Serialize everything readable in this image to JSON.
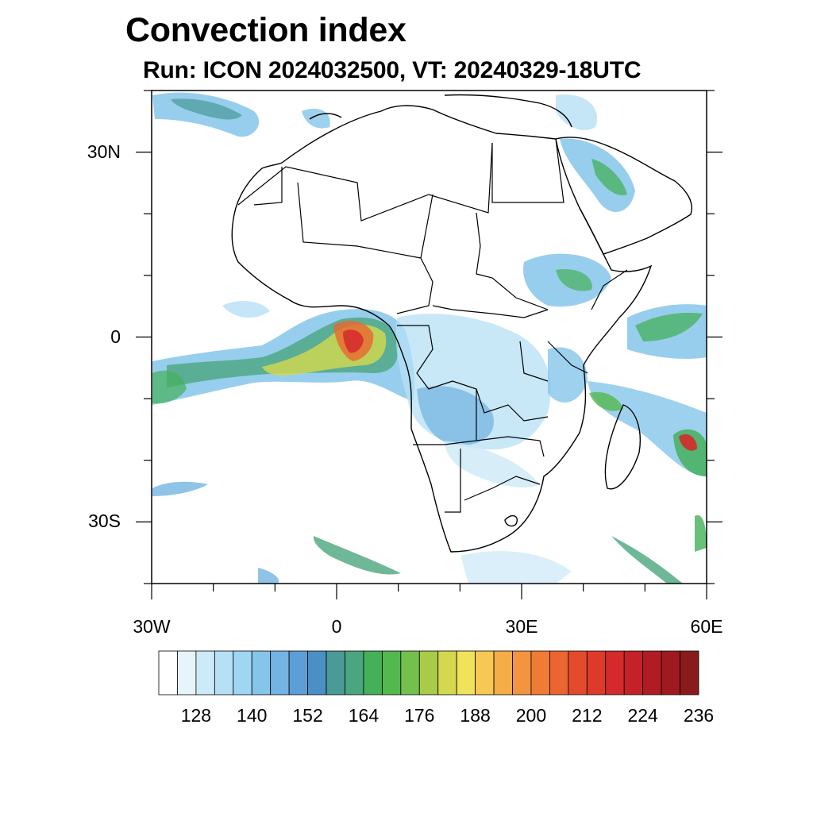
{
  "title": "Convection index",
  "subtitle": "Run: ICON 2024032500,  VT: 20240329-18UTC",
  "map": {
    "lon_range": [
      -30,
      60
    ],
    "lat_range": [
      -40,
      40
    ],
    "y_ticks": [
      {
        "lat": 30,
        "label": "30N"
      },
      {
        "lat": 0,
        "label": "0"
      },
      {
        "lat": -30,
        "label": "30S"
      }
    ],
    "x_ticks": [
      {
        "lon": -30,
        "label": "30W"
      },
      {
        "lon": 0,
        "label": "0"
      },
      {
        "lon": 30,
        "label": "30E"
      },
      {
        "lon": 60,
        "label": "60E"
      }
    ]
  },
  "colorbar": {
    "colors": [
      "#ffffff",
      "#e6f5fc",
      "#cdeaf8",
      "#b5e0f5",
      "#9ed6f3",
      "#86c5ea",
      "#74b4e2",
      "#5c9fd6",
      "#4b8fc4",
      "#4a9a98",
      "#4aa67e",
      "#44b05a",
      "#53b84e",
      "#74c04c",
      "#a8cc4a",
      "#d4d84e",
      "#f0e35a",
      "#f7c954",
      "#f5ad48",
      "#f39540",
      "#ef7b35",
      "#ea6530",
      "#e44a2c",
      "#dd3a2a",
      "#d42a2b",
      "#c42128",
      "#b11b24",
      "#9e1a20",
      "#8a1a1c"
    ],
    "labels": [
      "128",
      "140",
      "152",
      "164",
      "176",
      "188",
      "200",
      "212",
      "224",
      "236"
    ]
  }
}
